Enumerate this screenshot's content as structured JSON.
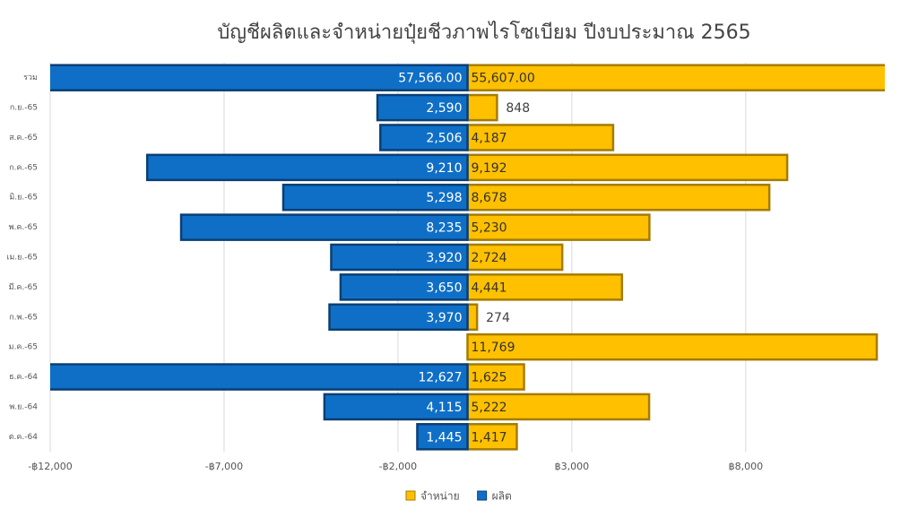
{
  "chart_data": {
    "type": "bar",
    "orientation": "horizontal",
    "title": "บัญชีผลิตและจำหน่ายปุ๋ยชีวภาพไรโซเบียม ปีงบประมาณ 2565",
    "categories": [
      "รวม",
      "ก.ย.-65",
      "ส.ค.-65",
      "ก.ค.-65",
      "มิ.ย.-65",
      "พ.ค.-65",
      "เม.ย.-65",
      "มี.ค.-65",
      "ก.พ.-65",
      "ม.ค.-65",
      "ธ.ค.-64",
      "พ.ย.-64",
      "ต.ค.-64"
    ],
    "series": [
      {
        "name": "จำหน่าย",
        "color": "#ffc000",
        "values": [
          55607,
          848,
          4187,
          9192,
          8678,
          5230,
          2724,
          4441,
          274,
          11769,
          1625,
          5222,
          1417
        ],
        "value_labels": [
          "55,607.00",
          "848",
          "4,187",
          "9,192",
          "8,678",
          "5,230",
          "2,724",
          "4,441",
          "274",
          "11,769",
          "1,625",
          "5,222",
          "1,417"
        ]
      },
      {
        "name": "ผลิต",
        "color": "#0f6fc6",
        "values": [
          -57566,
          -2590,
          -2506,
          -9210,
          -5298,
          -8235,
          -3920,
          -3650,
          -3970,
          null,
          -12627,
          -4115,
          -1445
        ],
        "value_labels": [
          "57,566.00",
          "2,590",
          "2,506",
          "9,210",
          "5,298",
          "8,235",
          "3,920",
          "3,650",
          "3,970",
          null,
          "12,627",
          "4,115",
          "1,445"
        ]
      }
    ],
    "xlim": [
      -12000,
      12000
    ],
    "xticks": [
      {
        "value": -12000,
        "label": "-฿12,000"
      },
      {
        "value": -7000,
        "label": "-฿7,000"
      },
      {
        "value": -2000,
        "label": "-฿2,000"
      },
      {
        "value": 3000,
        "label": "฿3,000"
      },
      {
        "value": 8000,
        "label": "฿8,000"
      }
    ],
    "grid": true,
    "legend": "bottom"
  }
}
